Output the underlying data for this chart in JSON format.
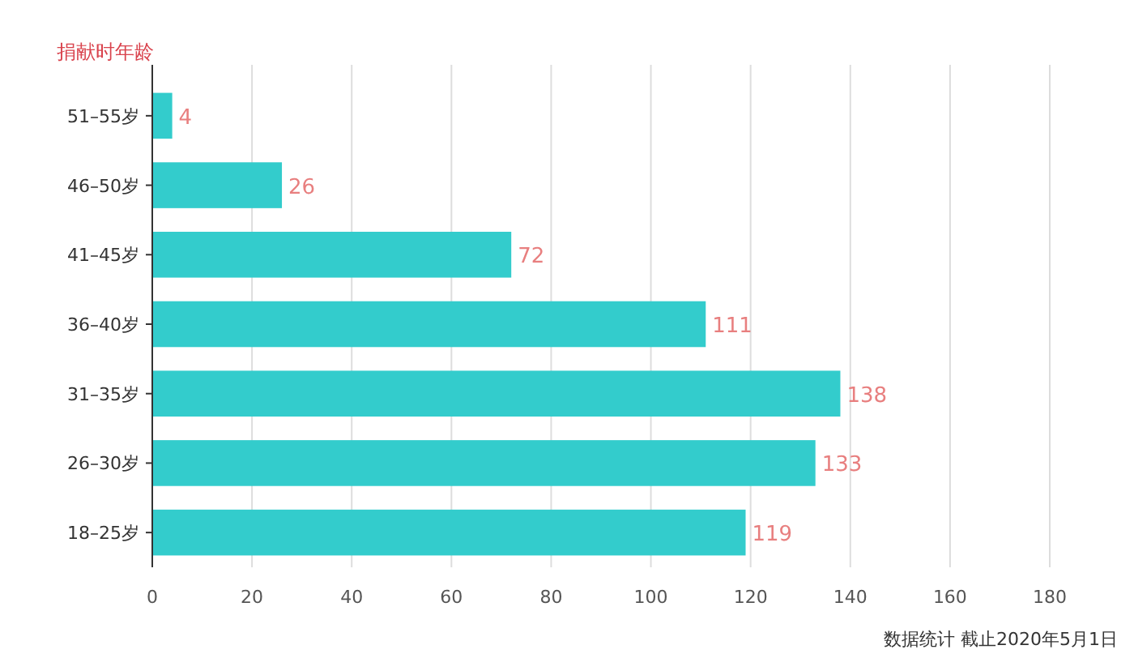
{
  "chart_data": {
    "type": "bar",
    "orientation": "horizontal",
    "ylabel": "捐献时年龄",
    "categories": [
      "51–55岁",
      "46–50岁",
      "41–45岁",
      "36–40岁",
      "31–35岁",
      "26–30岁",
      "18–25岁"
    ],
    "values": [
      4,
      26,
      72,
      111,
      138,
      133,
      119
    ],
    "color": "#33cccc",
    "xlim": [
      0,
      180
    ],
    "xticks": [
      0,
      20,
      40,
      60,
      80,
      100,
      120,
      140,
      160,
      180
    ],
    "grid": "x",
    "data_labels": true,
    "annotations": [
      "数据统计 截止2020年5月1日"
    ]
  }
}
